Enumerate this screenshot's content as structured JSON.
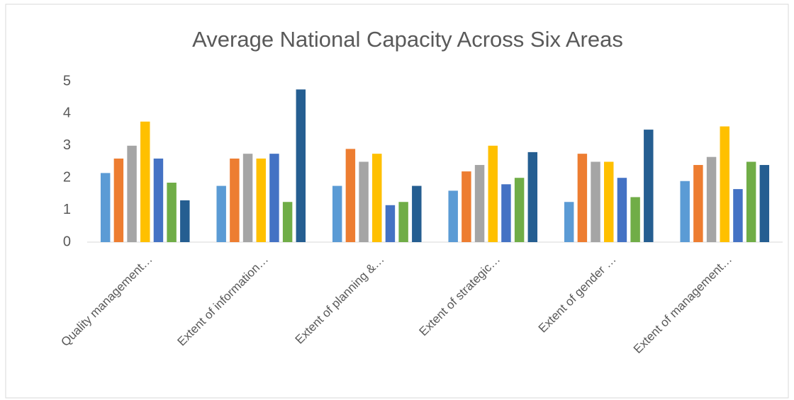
{
  "chart_data": {
    "type": "bar",
    "title": "Average National Capacity Across Six Areas",
    "categories": [
      "Quality management…",
      "Extent of information…",
      "Extent of planning &…",
      "Extent of strategic…",
      "Extent of gender …",
      "Extent of management…"
    ],
    "series": [
      {
        "color": "#5b9bd5",
        "values": [
          2.15,
          1.75,
          1.75,
          1.6,
          1.25,
          1.9
        ]
      },
      {
        "color": "#ed7d31",
        "values": [
          2.6,
          2.6,
          2.9,
          2.2,
          2.75,
          2.4
        ]
      },
      {
        "color": "#a5a5a5",
        "values": [
          3.0,
          2.75,
          2.5,
          2.4,
          2.5,
          2.65
        ]
      },
      {
        "color": "#ffc000",
        "values": [
          3.75,
          2.6,
          2.75,
          3.0,
          2.5,
          3.6
        ]
      },
      {
        "color": "#4472c4",
        "values": [
          2.6,
          2.75,
          1.15,
          1.8,
          2.0,
          1.65
        ]
      },
      {
        "color": "#70ad47",
        "values": [
          1.85,
          1.25,
          1.25,
          2.0,
          1.4,
          2.5
        ]
      },
      {
        "color": "#255e91",
        "values": [
          1.3,
          4.75,
          1.75,
          2.8,
          3.5,
          2.4
        ]
      }
    ],
    "ylim": [
      0,
      5
    ],
    "yticks": [
      0,
      1,
      2,
      3,
      4,
      5
    ],
    "grid": false
  }
}
